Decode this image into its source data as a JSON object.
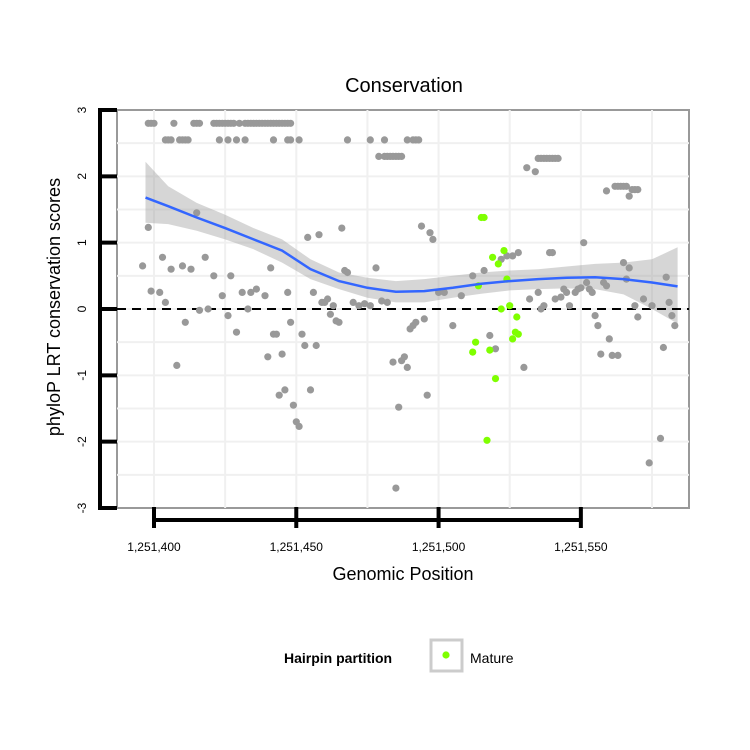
{
  "chart_data": {
    "type": "scatter",
    "title": "Conservation",
    "xlabel": "Genomic Position",
    "ylabel": "phyloP LRT conservation scores",
    "xlim": [
      1251387,
      1251588
    ],
    "ylim": [
      -3,
      3
    ],
    "x_ticks": [
      {
        "value": 1251400,
        "label": "1,251,400"
      },
      {
        "value": 1251450,
        "label": "1,251,450"
      },
      {
        "value": 1251500,
        "label": "1,251,500"
      },
      {
        "value": 1251550,
        "label": "1,251,550"
      }
    ],
    "y_ticks": [
      {
        "value": 3,
        "label": "3"
      },
      {
        "value": 2,
        "label": "2"
      },
      {
        "value": 1,
        "label": "1"
      },
      {
        "value": 0,
        "label": "0"
      },
      {
        "value": -1,
        "label": "-1"
      },
      {
        "value": -2,
        "label": "-2"
      },
      {
        "value": -3,
        "label": "-3"
      }
    ],
    "grid": true,
    "reference_line": {
      "y": 0,
      "style": "dashed"
    },
    "legend": {
      "title": "Hairpin partition",
      "position": "bottom",
      "entries": [
        {
          "label": "Mature",
          "color": "#7fff00"
        }
      ]
    },
    "series": [
      {
        "name": "Other",
        "color": "#999999",
        "points": [
          [
            1251398,
            2.8
          ],
          [
            1251399,
            2.8
          ],
          [
            1251400,
            2.8
          ],
          [
            1251404,
            2.55
          ],
          [
            1251405,
            2.55
          ],
          [
            1251406,
            2.55
          ],
          [
            1251407,
            2.8
          ],
          [
            1251409,
            2.55
          ],
          [
            1251410,
            2.55
          ],
          [
            1251411,
            2.55
          ],
          [
            1251412,
            2.55
          ],
          [
            1251414,
            2.8
          ],
          [
            1251415,
            2.8
          ],
          [
            1251416,
            2.8
          ],
          [
            1251421,
            2.8
          ],
          [
            1251422,
            2.8
          ],
          [
            1251423,
            2.8
          ],
          [
            1251424,
            2.8
          ],
          [
            1251425,
            2.8
          ],
          [
            1251426,
            2.8
          ],
          [
            1251427,
            2.8
          ],
          [
            1251428,
            2.8
          ],
          [
            1251430,
            2.8
          ],
          [
            1251432,
            2.8
          ],
          [
            1251433,
            2.8
          ],
          [
            1251434,
            2.8
          ],
          [
            1251435,
            2.8
          ],
          [
            1251436,
            2.8
          ],
          [
            1251437,
            2.8
          ],
          [
            1251438,
            2.8
          ],
          [
            1251439,
            2.8
          ],
          [
            1251440,
            2.8
          ],
          [
            1251441,
            2.8
          ],
          [
            1251442,
            2.8
          ],
          [
            1251443,
            2.8
          ],
          [
            1251444,
            2.8
          ],
          [
            1251445,
            2.8
          ],
          [
            1251446,
            2.8
          ],
          [
            1251447,
            2.8
          ],
          [
            1251448,
            2.8
          ],
          [
            1251423,
            2.55
          ],
          [
            1251426,
            2.55
          ],
          [
            1251429,
            2.55
          ],
          [
            1251432,
            2.55
          ],
          [
            1251442,
            2.55
          ],
          [
            1251447,
            2.55
          ],
          [
            1251448,
            2.55
          ],
          [
            1251451,
            2.55
          ],
          [
            1251468,
            2.55
          ],
          [
            1251476,
            2.55
          ],
          [
            1251481,
            2.55
          ],
          [
            1251489,
            2.55
          ],
          [
            1251491,
            2.55
          ],
          [
            1251492,
            2.55
          ],
          [
            1251493,
            2.55
          ],
          [
            1251479,
            2.3
          ],
          [
            1251481,
            2.3
          ],
          [
            1251482,
            2.3
          ],
          [
            1251483,
            2.3
          ],
          [
            1251484,
            2.3
          ],
          [
            1251485,
            2.3
          ],
          [
            1251486,
            2.3
          ],
          [
            1251487,
            2.3
          ],
          [
            1251535,
            2.27
          ],
          [
            1251536,
            2.27
          ],
          [
            1251537,
            2.27
          ],
          [
            1251538,
            2.27
          ],
          [
            1251539,
            2.27
          ],
          [
            1251540,
            2.27
          ],
          [
            1251541,
            2.27
          ],
          [
            1251542,
            2.27
          ],
          [
            1251531,
            2.13
          ],
          [
            1251534,
            2.07
          ],
          [
            1251559,
            1.78
          ],
          [
            1251562,
            1.85
          ],
          [
            1251563,
            1.85
          ],
          [
            1251564,
            1.85
          ],
          [
            1251565,
            1.85
          ],
          [
            1251566,
            1.85
          ],
          [
            1251567,
            1.7
          ],
          [
            1251568,
            1.8
          ],
          [
            1251569,
            1.8
          ],
          [
            1251570,
            1.8
          ],
          [
            1251396,
            0.65
          ],
          [
            1251398,
            1.23
          ],
          [
            1251399,
            0.27
          ],
          [
            1251402,
            0.25
          ],
          [
            1251403,
            0.78
          ],
          [
            1251404,
            0.1
          ],
          [
            1251406,
            0.6
          ],
          [
            1251408,
            -0.85
          ],
          [
            1251410,
            0.65
          ],
          [
            1251411,
            -0.2
          ],
          [
            1251413,
            0.6
          ],
          [
            1251415,
            1.45
          ],
          [
            1251416,
            -0.02
          ],
          [
            1251418,
            0.78
          ],
          [
            1251419,
            0.0
          ],
          [
            1251421,
            0.5
          ],
          [
            1251424,
            0.2
          ],
          [
            1251426,
            -0.1
          ],
          [
            1251427,
            0.5
          ],
          [
            1251429,
            -0.35
          ],
          [
            1251431,
            0.25
          ],
          [
            1251433,
            0.0
          ],
          [
            1251434,
            0.25
          ],
          [
            1251436,
            0.3
          ],
          [
            1251439,
            0.2
          ],
          [
            1251440,
            -0.72
          ],
          [
            1251441,
            0.62
          ],
          [
            1251442,
            -0.38
          ],
          [
            1251443,
            -0.38
          ],
          [
            1251444,
            -1.3
          ],
          [
            1251445,
            -0.68
          ],
          [
            1251446,
            -1.22
          ],
          [
            1251447,
            0.25
          ],
          [
            1251448,
            -0.2
          ],
          [
            1251449,
            -1.45
          ],
          [
            1251450,
            -1.7
          ],
          [
            1251451,
            -1.77
          ],
          [
            1251452,
            -0.38
          ],
          [
            1251453,
            -0.55
          ],
          [
            1251454,
            1.08
          ],
          [
            1251455,
            -1.22
          ],
          [
            1251456,
            0.25
          ],
          [
            1251457,
            -0.55
          ],
          [
            1251458,
            1.12
          ],
          [
            1251459,
            0.1
          ],
          [
            1251460,
            0.1
          ],
          [
            1251461,
            0.15
          ],
          [
            1251462,
            -0.08
          ],
          [
            1251463,
            0.05
          ],
          [
            1251464,
            -0.18
          ],
          [
            1251465,
            -0.2
          ],
          [
            1251466,
            1.22
          ],
          [
            1251467,
            0.58
          ],
          [
            1251468,
            0.55
          ],
          [
            1251470,
            0.1
          ],
          [
            1251472,
            0.05
          ],
          [
            1251474,
            0.08
          ],
          [
            1251476,
            0.05
          ],
          [
            1251478,
            0.62
          ],
          [
            1251480,
            0.12
          ],
          [
            1251482,
            0.1
          ],
          [
            1251484,
            -0.8
          ],
          [
            1251485,
            -2.7
          ],
          [
            1251486,
            -1.48
          ],
          [
            1251487,
            -0.78
          ],
          [
            1251488,
            -0.72
          ],
          [
            1251489,
            -0.88
          ],
          [
            1251490,
            -0.3
          ],
          [
            1251491,
            -0.25
          ],
          [
            1251492,
            -0.2
          ],
          [
            1251494,
            1.25
          ],
          [
            1251495,
            -0.15
          ],
          [
            1251496,
            -1.3
          ],
          [
            1251497,
            1.15
          ],
          [
            1251498,
            1.05
          ],
          [
            1251500,
            0.25
          ],
          [
            1251502,
            0.25
          ],
          [
            1251505,
            -0.25
          ],
          [
            1251508,
            0.2
          ],
          [
            1251512,
            0.5
          ],
          [
            1251516,
            0.58
          ],
          [
            1251518,
            -0.4
          ],
          [
            1251520,
            -0.6
          ],
          [
            1251522,
            0.75
          ],
          [
            1251524,
            0.8
          ],
          [
            1251526,
            0.8
          ],
          [
            1251528,
            0.85
          ],
          [
            1251530,
            -0.88
          ],
          [
            1251532,
            0.15
          ],
          [
            1251535,
            0.25
          ],
          [
            1251536,
            0.0
          ],
          [
            1251537,
            0.05
          ],
          [
            1251539,
            0.85
          ],
          [
            1251540,
            0.85
          ],
          [
            1251541,
            0.15
          ],
          [
            1251543,
            0.18
          ],
          [
            1251544,
            0.3
          ],
          [
            1251545,
            0.25
          ],
          [
            1251546,
            0.05
          ],
          [
            1251548,
            0.25
          ],
          [
            1251549,
            0.3
          ],
          [
            1251550,
            0.32
          ],
          [
            1251551,
            1.0
          ],
          [
            1251552,
            0.4
          ],
          [
            1251553,
            0.3
          ],
          [
            1251554,
            0.25
          ],
          [
            1251555,
            -0.1
          ],
          [
            1251556,
            -0.25
          ],
          [
            1251557,
            -0.68
          ],
          [
            1251558,
            0.4
          ],
          [
            1251559,
            0.35
          ],
          [
            1251560,
            -0.45
          ],
          [
            1251561,
            -0.7
          ],
          [
            1251563,
            -0.7
          ],
          [
            1251565,
            0.7
          ],
          [
            1251566,
            0.45
          ],
          [
            1251567,
            0.62
          ],
          [
            1251569,
            0.05
          ],
          [
            1251570,
            -0.12
          ],
          [
            1251572,
            0.15
          ],
          [
            1251574,
            -2.32
          ],
          [
            1251575,
            0.05
          ],
          [
            1251578,
            -1.95
          ],
          [
            1251579,
            -0.58
          ],
          [
            1251580,
            0.48
          ],
          [
            1251581,
            0.1
          ],
          [
            1251582,
            -0.1
          ],
          [
            1251583,
            -0.25
          ]
        ]
      },
      {
        "name": "Mature",
        "color": "#7fff00",
        "points": [
          [
            1251515,
            1.38
          ],
          [
            1251516,
            1.38
          ],
          [
            1251512,
            -0.65
          ],
          [
            1251513,
            -0.5
          ],
          [
            1251514,
            0.35
          ],
          [
            1251517,
            -1.98
          ],
          [
            1251518,
            -0.62
          ],
          [
            1251519,
            0.78
          ],
          [
            1251520,
            -1.05
          ],
          [
            1251521,
            0.68
          ],
          [
            1251522,
            0.0
          ],
          [
            1251523,
            0.88
          ],
          [
            1251524,
            0.45
          ],
          [
            1251525,
            0.05
          ],
          [
            1251526,
            -0.45
          ],
          [
            1251527,
            -0.35
          ],
          [
            1251527.5,
            -0.12
          ],
          [
            1251528,
            -0.38
          ]
        ]
      }
    ],
    "smooth_line": {
      "name": "LOESS fit",
      "color": "#3366ff",
      "x": [
        1251397,
        1251405,
        1251415,
        1251425,
        1251435,
        1251445,
        1251455,
        1251465,
        1251475,
        1251485,
        1251495,
        1251505,
        1251515,
        1251525,
        1251535,
        1251545,
        1251555,
        1251565,
        1251575,
        1251584
      ],
      "y": [
        1.68,
        1.55,
        1.38,
        1.22,
        1.05,
        0.88,
        0.6,
        0.42,
        0.32,
        0.26,
        0.27,
        0.32,
        0.38,
        0.42,
        0.45,
        0.47,
        0.48,
        0.45,
        0.4,
        0.34
      ],
      "lower": [
        1.3,
        1.28,
        1.18,
        1.05,
        0.9,
        0.7,
        0.45,
        0.3,
        0.17,
        0.1,
        0.1,
        0.17,
        0.23,
        0.28,
        0.3,
        0.31,
        0.3,
        0.22,
        0.0,
        -0.22
      ],
      "upper": [
        2.22,
        1.85,
        1.6,
        1.42,
        1.22,
        1.05,
        0.75,
        0.55,
        0.47,
        0.42,
        0.45,
        0.5,
        0.55,
        0.58,
        0.6,
        0.64,
        0.68,
        0.7,
        0.75,
        0.93
      ]
    }
  }
}
